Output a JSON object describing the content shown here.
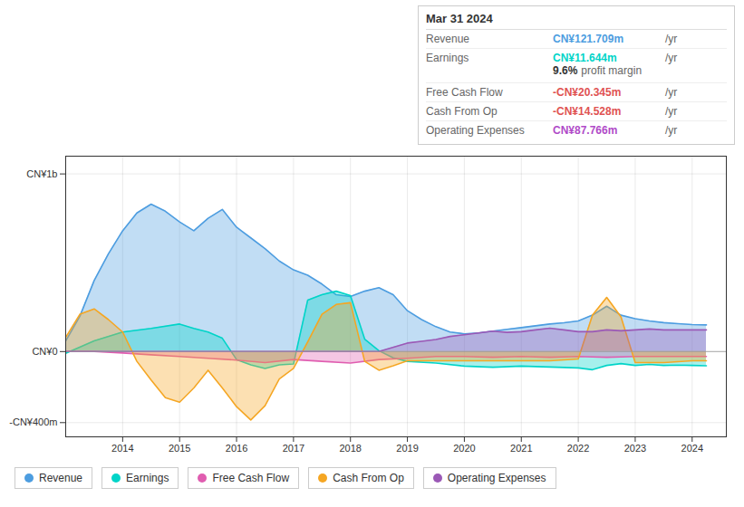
{
  "chart_data": {
    "type": "area",
    "xlim": [
      2013.0,
      2024.6
    ],
    "xticks": [
      2014,
      2015,
      2016,
      2017,
      2018,
      2019,
      2020,
      2021,
      2022,
      2023,
      2024
    ],
    "ylim": [
      -480,
      1100
    ],
    "yticks": [
      {
        "value": 1000,
        "label": "CN¥1b"
      },
      {
        "value": 0,
        "label": "CN¥0"
      },
      {
        "value": -400,
        "label": "-CN¥400m"
      }
    ],
    "grid": true,
    "legend": "bottom",
    "series": [
      {
        "name": "Revenue",
        "color": "#4d9de0",
        "x": [
          2013.0,
          2013.25,
          2013.5,
          2013.75,
          2014.0,
          2014.25,
          2014.5,
          2014.75,
          2015.0,
          2015.25,
          2015.5,
          2015.75,
          2016.0,
          2016.25,
          2016.5,
          2016.75,
          2017.0,
          2017.25,
          2017.5,
          2017.75,
          2018.0,
          2018.25,
          2018.5,
          2018.75,
          2019.0,
          2019.25,
          2019.5,
          2019.75,
          2020.0,
          2020.25,
          2020.5,
          2020.75,
          2021.0,
          2021.25,
          2021.5,
          2021.75,
          2022.0,
          2022.25,
          2022.5,
          2022.75,
          2023.0,
          2023.25,
          2023.5,
          2023.75,
          2024.0,
          2024.25
        ],
        "values": [
          60,
          200,
          400,
          550,
          680,
          780,
          830,
          790,
          730,
          680,
          750,
          800,
          700,
          640,
          580,
          510,
          460,
          430,
          380,
          320,
          310,
          340,
          360,
          320,
          230,
          180,
          140,
          110,
          100,
          105,
          115,
          125,
          135,
          145,
          155,
          162,
          172,
          205,
          255,
          205,
          185,
          172,
          163,
          157,
          152,
          150
        ]
      },
      {
        "name": "Earnings",
        "color": "#00d4c8",
        "x": [
          2013.0,
          2013.5,
          2014.0,
          2014.5,
          2015.0,
          2015.25,
          2015.5,
          2015.75,
          2016.0,
          2016.25,
          2016.5,
          2016.75,
          2017.0,
          2017.25,
          2017.5,
          2017.75,
          2018.0,
          2018.25,
          2018.5,
          2018.75,
          2019.0,
          2019.5,
          2020.0,
          2020.5,
          2021.0,
          2021.5,
          2022.0,
          2022.25,
          2022.5,
          2022.75,
          2023.0,
          2023.25,
          2023.5,
          2023.75,
          2024.0,
          2024.25
        ],
        "values": [
          -10,
          60,
          110,
          130,
          155,
          130,
          110,
          75,
          -45,
          -75,
          -95,
          -75,
          -70,
          290,
          320,
          340,
          315,
          70,
          5,
          -35,
          -55,
          -65,
          -82,
          -88,
          -82,
          -87,
          -92,
          -102,
          -78,
          -68,
          -78,
          -72,
          -78,
          -76,
          -78,
          -80
        ]
      },
      {
        "name": "Free Cash Flow",
        "color": "#e05db0",
        "x": [
          2013.0,
          2013.5,
          2014.0,
          2014.5,
          2015.0,
          2015.5,
          2016.0,
          2016.5,
          2017.0,
          2017.5,
          2018.0,
          2018.5,
          2019.0,
          2019.5,
          2020.0,
          2020.5,
          2021.0,
          2021.5,
          2022.0,
          2022.5,
          2023.0,
          2023.5,
          2024.0,
          2024.25
        ],
        "values": [
          0,
          0,
          -8,
          -18,
          -28,
          -38,
          -48,
          -62,
          -45,
          -55,
          -65,
          -45,
          -38,
          -28,
          -28,
          -32,
          -28,
          -32,
          -28,
          -32,
          -28,
          -28,
          -28,
          -28
        ]
      },
      {
        "name": "Cash From Op",
        "color": "#f5a623",
        "x": [
          2013.0,
          2013.25,
          2013.5,
          2013.75,
          2014.0,
          2014.25,
          2014.5,
          2014.75,
          2015.0,
          2015.25,
          2015.5,
          2015.75,
          2016.0,
          2016.25,
          2016.5,
          2016.75,
          2017.0,
          2017.25,
          2017.5,
          2017.75,
          2018.0,
          2018.25,
          2018.5,
          2018.75,
          2019.0,
          2019.5,
          2020.0,
          2020.5,
          2021.0,
          2021.5,
          2022.0,
          2022.25,
          2022.5,
          2022.75,
          2023.0,
          2023.5,
          2024.0,
          2024.25
        ],
        "values": [
          80,
          210,
          240,
          180,
          110,
          -55,
          -160,
          -260,
          -285,
          -205,
          -105,
          -205,
          -310,
          -385,
          -305,
          -155,
          -95,
          55,
          210,
          265,
          275,
          -55,
          -105,
          -80,
          -52,
          -52,
          -52,
          -52,
          -52,
          -52,
          -42,
          205,
          305,
          195,
          -62,
          -62,
          -52,
          -52
        ]
      },
      {
        "name": "Operating Expenses",
        "color": "#9b59b6",
        "x": [
          2013.0,
          2013.5,
          2014.0,
          2014.5,
          2015.0,
          2015.5,
          2016.0,
          2016.5,
          2017.0,
          2017.5,
          2018.0,
          2018.5,
          2019.0,
          2019.25,
          2019.5,
          2019.75,
          2020.0,
          2020.25,
          2020.5,
          2020.75,
          2021.0,
          2021.25,
          2021.5,
          2021.75,
          2022.0,
          2022.25,
          2022.5,
          2022.75,
          2023.0,
          2023.25,
          2023.5,
          2023.75,
          2024.0,
          2024.25
        ],
        "values": [
          0,
          0,
          0,
          0,
          0,
          0,
          0,
          0,
          0,
          0,
          0,
          0,
          48,
          58,
          68,
          85,
          95,
          105,
          115,
          108,
          112,
          122,
          132,
          122,
          112,
          112,
          122,
          117,
          122,
          127,
          122,
          122,
          122,
          122
        ]
      }
    ],
    "annotations": {
      "title": "Mar 31 2024",
      "rows": [
        {
          "label": "Revenue",
          "value": "CN¥121.709m",
          "unit": "/yr",
          "color": "#4d9de0"
        },
        {
          "label": "Earnings",
          "value": "CN¥11.644m",
          "unit": "/yr",
          "color": "#00d4c8",
          "note_value": "9.6%",
          "note": "profit margin"
        },
        {
          "label": "Free Cash Flow",
          "value": "-CN¥20.345m",
          "unit": "/yr",
          "color": "#e05252"
        },
        {
          "label": "Cash From Op",
          "value": "-CN¥14.528m",
          "unit": "/yr",
          "color": "#e05252"
        },
        {
          "label": "Operating Expenses",
          "value": "CN¥87.766m",
          "unit": "/yr",
          "color": "#b04ac8"
        }
      ]
    }
  }
}
